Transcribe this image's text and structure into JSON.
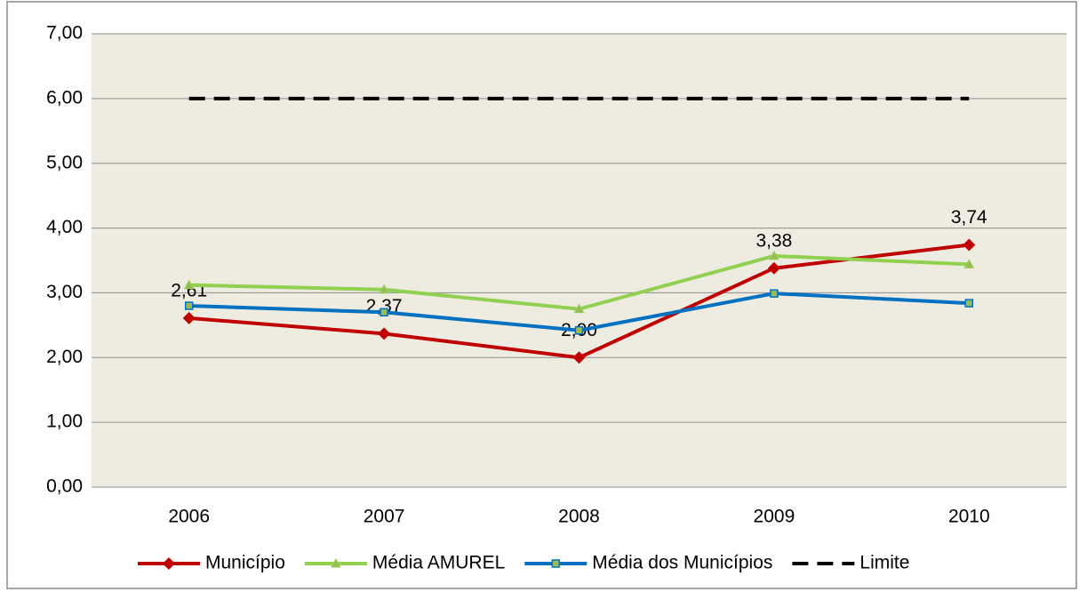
{
  "chart_data": {
    "type": "line",
    "categories": [
      "2006",
      "2007",
      "2008",
      "2009",
      "2010"
    ],
    "series": [
      {
        "name": "Município",
        "color": "#c00000",
        "marker": "diamond",
        "dash": false,
        "values": [
          2.61,
          2.37,
          2.0,
          3.38,
          3.74
        ],
        "value_labels": [
          "2,61",
          "2,37",
          "2,00",
          "3,38",
          "3,74"
        ]
      },
      {
        "name": "Média AMUREL",
        "color": "#92d050",
        "marker": "triangle",
        "dash": false,
        "values": [
          3.12,
          3.05,
          2.75,
          3.57,
          3.44
        ]
      },
      {
        "name": "Média dos Municípios",
        "color": "#0070c0",
        "marker": "square",
        "dash": false,
        "values": [
          2.8,
          2.7,
          2.42,
          2.99,
          2.84
        ]
      },
      {
        "name": "Limite",
        "color": "#000000",
        "marker": "none",
        "dash": true,
        "values": [
          6,
          6,
          6,
          6,
          6
        ]
      }
    ],
    "ylim": [
      0,
      7
    ],
    "yticks": [
      {
        "value": 0,
        "label": "0,00"
      },
      {
        "value": 1,
        "label": "1,00"
      },
      {
        "value": 2,
        "label": "2,00"
      },
      {
        "value": 3,
        "label": "3,00"
      },
      {
        "value": 4,
        "label": "4,00"
      },
      {
        "value": 5,
        "label": "5,00"
      },
      {
        "value": 6,
        "label": "6,00"
      },
      {
        "value": 7,
        "label": "7,00"
      }
    ],
    "grid": true,
    "legend": "bottom"
  }
}
